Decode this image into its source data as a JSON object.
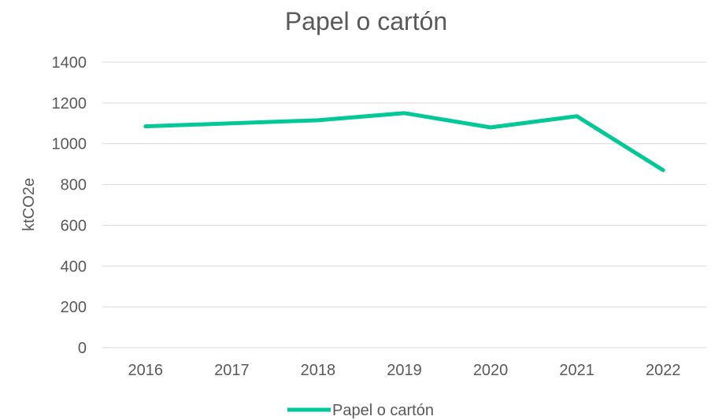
{
  "chart_data": {
    "type": "line",
    "title": "Papel o cartón",
    "xlabel": "",
    "ylabel": "ktCO2e",
    "categories": [
      "2016",
      "2017",
      "2018",
      "2019",
      "2020",
      "2021",
      "2022"
    ],
    "series": [
      {
        "name": "Papel o cartón",
        "values": [
          1085,
          1100,
          1115,
          1150,
          1080,
          1135,
          870
        ],
        "color": "#00c896"
      }
    ],
    "ylim": [
      0,
      1400
    ],
    "yticks": [
      "0",
      "200",
      "400",
      "600",
      "800",
      "1000",
      "1200",
      "1400"
    ],
    "grid": true,
    "legend": "bottom"
  }
}
